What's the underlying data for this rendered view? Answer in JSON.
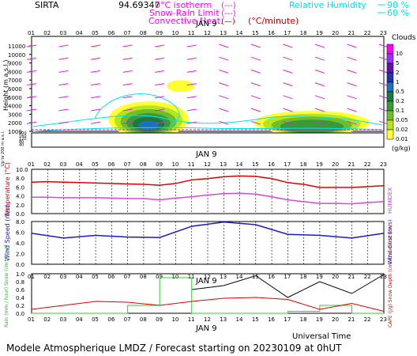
{
  "header": {
    "site": "SIRTA",
    "coords": "94.69347",
    "legend": [
      {
        "label": "0°C isotherm",
        "sample": "(---)",
        "color": "#ff00ff"
      },
      {
        "label": "Snow-Rain Limit",
        "sample": "(---)",
        "color": "#ff00ff"
      },
      {
        "label": "Convective Heat.",
        "sample": "(—)",
        "unit": "(°C/minute)",
        "color": "#cc0000"
      }
    ],
    "rh_legend": [
      {
        "label": "Relative Humidity",
        "value": "90 %",
        "color": "#00e5ee"
      },
      {
        "value": "60 %",
        "color": "#00e5ee"
      }
    ]
  },
  "colorbar": {
    "title": "Clouds",
    "unit": "(g/kg)",
    "levels": [
      "10",
      "5",
      "2",
      "1",
      "0.5",
      "0.2",
      "0.1",
      "0.05",
      "0.02",
      "0.01"
    ],
    "colors": [
      "#ff00ff",
      "#9b30ff",
      "#6a0dad",
      "#2233aa",
      "#1e6fbf",
      "#1b7a43",
      "#3a9a3a",
      "#6cbf2a",
      "#b5e61d",
      "#ffff33"
    ]
  },
  "footer": {
    "model": "Modele Atmospherique LMDZ / Forecast starting on 20230109 at 0hUT",
    "time_label": "Universal Time",
    "date_label": "JAN  9"
  },
  "hours": [
    "01",
    "02",
    "03",
    "04",
    "05",
    "06",
    "07",
    "08",
    "09",
    "10",
    "11",
    "12",
    "13",
    "14",
    "15",
    "16",
    "17",
    "18",
    "19",
    "20",
    "21",
    "22",
    "23"
  ],
  "chart_data": [
    {
      "type": "heatmap",
      "title": "Clouds",
      "ylabel": "Height (m a.s.l.)",
      "ylabel2": "Up to 200 m a.s.l.",
      "yticks_upper": [
        1000,
        2000,
        3000,
        4000,
        5000,
        6000,
        7000,
        8000,
        9000,
        10000,
        11000
      ],
      "yticks_lower": [
        20,
        40,
        60,
        80,
        100,
        120,
        140,
        160,
        180,
        200
      ],
      "x": [
        "01",
        "02",
        "03",
        "04",
        "05",
        "06",
        "07",
        "08",
        "09",
        "10",
        "11",
        "12",
        "13",
        "14",
        "15",
        "16",
        "17",
        "18",
        "19",
        "20",
        "21",
        "22",
        "23"
      ],
      "date": "JAN  9",
      "clouds": [
        {
          "t0": 5.5,
          "t1": 10.5,
          "h0": 1000,
          "h1": 5200,
          "peak": 1.2,
          "tc": 8.3,
          "hc": 2400
        },
        {
          "t0": 15.5,
          "t1": 22.7,
          "h0": 1000,
          "h1": 3800,
          "peak": 0.6,
          "tc": 18.5,
          "hc": 2000
        },
        {
          "t0": 9.5,
          "t1": 11.2,
          "h0": 5600,
          "h1": 7000,
          "peak": 0.02,
          "tc": 10.3,
          "hc": 6300
        }
      ]
    },
    {
      "type": "line",
      "ylabel": "Temperature (°C)",
      "ylabel2": "HUMIDEX",
      "ylim": [
        0,
        10
      ],
      "yticks": [
        "0.0",
        "2.0",
        "4.0",
        "6.0",
        "8.0",
        "10.0"
      ],
      "x": [
        1,
        2,
        3,
        4,
        5,
        6,
        7,
        8,
        9,
        10,
        11,
        12,
        13,
        14,
        15,
        16,
        17,
        18,
        19,
        20,
        21,
        22,
        23
      ],
      "series": [
        {
          "name": "Temperature",
          "color": "#dd0000",
          "values": [
            7.1,
            7.2,
            7.1,
            7.0,
            6.9,
            6.8,
            6.7,
            6.6,
            6.4,
            6.8,
            7.6,
            7.9,
            8.3,
            8.5,
            8.4,
            7.9,
            7.0,
            6.6,
            5.9,
            5.9,
            5.9,
            6.1,
            6.3
          ]
        },
        {
          "name": "HUMIDEX",
          "color": "#dd44dd",
          "values": [
            3.7,
            3.7,
            3.6,
            3.6,
            3.6,
            3.5,
            3.4,
            3.4,
            3.1,
            3.5,
            3.8,
            4.2,
            4.5,
            4.6,
            4.4,
            3.8,
            3.1,
            2.7,
            2.3,
            2.3,
            2.2,
            2.5,
            2.7
          ]
        }
      ]
    },
    {
      "type": "line",
      "ylabel": "Wind Speed (m/s)",
      "ylabel2": "Wind Gust (m/s)",
      "ylim": [
        0,
        8
      ],
      "yticks": [
        "0.0",
        "2.0",
        "4.0",
        "6.0",
        "8.0"
      ],
      "x": [
        1,
        3,
        5,
        7,
        9,
        11,
        13,
        15,
        17,
        19,
        21,
        23
      ],
      "series": [
        {
          "name": "Wind Speed",
          "color": "#1a1acc",
          "values": [
            5.8,
            4.9,
            5.4,
            5.1,
            5.0,
            7.1,
            7.9,
            7.4,
            5.6,
            5.4,
            4.9,
            5.8
          ]
        }
      ]
    },
    {
      "type": "line",
      "ylabel": "Rain (mm / hour) Snow (cm / hour)",
      "ylabel2": "CAPE (J/g) Snow Depth (cm) Cloud Fraction",
      "ylim": [
        0,
        1.0
      ],
      "yticks": [
        "0.0",
        "0.2",
        "0.4",
        "0.6",
        "0.8",
        "1.0"
      ],
      "x": [
        1,
        3,
        5,
        7,
        9,
        11,
        13,
        15,
        17,
        19,
        21,
        23
      ],
      "series": [
        {
          "name": "Cloud Fraction",
          "color": "#000000",
          "values": [
            null,
            null,
            null,
            null,
            null,
            0.6,
            0.7,
            0.95,
            0.4,
            0.8,
            0.5,
            0.98
          ]
        },
        {
          "name": "Rain",
          "color": "#33cc33",
          "type": "step",
          "values": [
            0,
            0,
            0,
            0.2,
            0.9,
            0,
            0,
            0,
            0.05,
            0.2,
            0,
            0
          ]
        },
        {
          "name": "CAPE",
          "color": "#dd0000",
          "values": [
            0.1,
            0.2,
            0.3,
            0.28,
            0.2,
            0.3,
            0.38,
            0.4,
            0.35,
            0.1,
            0.25,
            0.05
          ]
        }
      ]
    }
  ]
}
